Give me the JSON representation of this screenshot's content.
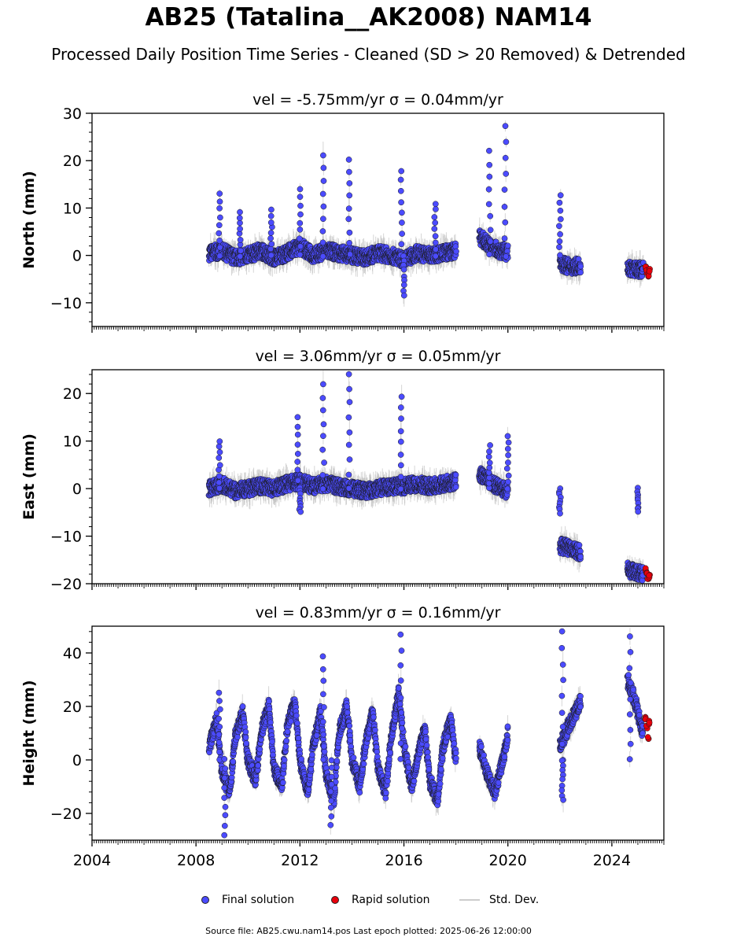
{
  "title": "AB25 (Tatalina__AK2008) NAM14",
  "subtitle": "Processed Daily Position Time Series - Cleaned (SD > 20 Removed) & Detrended",
  "legend": {
    "final": "Final solution",
    "rapid": "Rapid solution",
    "stddev": "Std. Dev."
  },
  "footer": "Source file: AB25.cwu.nam14.pos  Last epoch plotted: 2025-06-26 12:00:00",
  "colors": {
    "final": "#4b4bff",
    "rapid": "#e8000b",
    "stddev": "#bbbbbb",
    "edge": "#1a1a1a"
  },
  "chart_data": [
    {
      "type": "scatter",
      "title": "vel = -5.75mm/yr   σ = 0.04mm/yr",
      "ylabel": "North (mm)",
      "xlim": [
        2004,
        2026
      ],
      "ylim": [
        -15,
        30
      ],
      "yticks": [
        -10,
        0,
        10,
        20,
        30
      ],
      "xticks": [
        2004,
        2008,
        2012,
        2016,
        2020,
        2024
      ],
      "xtick_labels_shown": false,
      "final_segments": [
        {
          "x": [
            2008.5,
            2009.0,
            2009.5,
            2010.0,
            2010.5,
            2011.0,
            2011.5,
            2012.0,
            2012.5,
            2013.0,
            2013.5,
            2014.0,
            2014.5,
            2015.0,
            2015.5,
            2016.0,
            2016.5,
            2017.0,
            2017.5,
            2018.0
          ],
          "y": [
            0.5,
            1.0,
            -0.5,
            0.0,
            1.0,
            -0.5,
            0.5,
            2.0,
            0.0,
            1.0,
            0.5,
            0.0,
            -0.5,
            0.5,
            0.0,
            -1.0,
            0.5,
            0.0,
            0.5,
            1.0
          ]
        },
        {
          "x": [
            2018.9,
            2019.3,
            2019.7,
            2020.0
          ],
          "y": [
            4.0,
            2.0,
            1.0,
            0.5
          ]
        },
        {
          "x": [
            2022.0,
            2022.4,
            2022.8
          ],
          "y": [
            -1.5,
            -2.5,
            -2.0
          ]
        },
        {
          "x": [
            2024.6,
            2024.9,
            2025.2
          ],
          "y": [
            -2.5,
            -3.0,
            -3.0
          ]
        }
      ],
      "final_spikes": [
        {
          "x": 2008.9,
          "y": 13.0
        },
        {
          "x": 2009.7,
          "y": 9.0
        },
        {
          "x": 2010.9,
          "y": 9.5
        },
        {
          "x": 2012.0,
          "y": 14.0
        },
        {
          "x": 2012.9,
          "y": 21.0
        },
        {
          "x": 2013.9,
          "y": 20.0
        },
        {
          "x": 2015.9,
          "y": 18.0
        },
        {
          "x": 2016.0,
          "y": -8.5
        },
        {
          "x": 2017.2,
          "y": 11.0
        },
        {
          "x": 2019.3,
          "y": 22.0
        },
        {
          "x": 2019.9,
          "y": 27.5
        },
        {
          "x": 2022.0,
          "y": 12.5
        }
      ],
      "rapid": {
        "x": [
          2025.3,
          2025.35,
          2025.4,
          2025.45
        ],
        "y": [
          -2.5,
          -3.5,
          -4.0,
          -3.0
        ]
      }
    },
    {
      "type": "scatter",
      "title": "vel = 3.06mm/yr   σ = 0.05mm/yr",
      "ylabel": "East (mm)",
      "xlim": [
        2004,
        2026
      ],
      "ylim": [
        -20,
        25
      ],
      "yticks": [
        -20,
        -10,
        0,
        10,
        20
      ],
      "xticks": [
        2004,
        2008,
        2012,
        2016,
        2020,
        2024
      ],
      "xtick_labels_shown": false,
      "final_segments": [
        {
          "x": [
            2008.5,
            2009.0,
            2009.5,
            2010.0,
            2010.5,
            2011.0,
            2011.5,
            2012.0,
            2012.5,
            2013.0,
            2013.5,
            2014.0,
            2014.5,
            2015.0,
            2015.5,
            2016.0,
            2016.5,
            2017.0,
            2017.5,
            2018.0
          ],
          "y": [
            0.0,
            1.0,
            -0.5,
            0.0,
            0.5,
            0.0,
            1.0,
            1.5,
            0.5,
            1.0,
            0.5,
            0.0,
            -0.5,
            0.0,
            0.5,
            0.5,
            1.0,
            0.5,
            1.0,
            1.5
          ]
        },
        {
          "x": [
            2018.9,
            2019.3,
            2019.7,
            2020.0
          ],
          "y": [
            3.0,
            1.5,
            0.0,
            -0.5
          ]
        },
        {
          "x": [
            2022.0,
            2022.4,
            2022.8
          ],
          "y": [
            -12.0,
            -12.5,
            -13.5
          ]
        },
        {
          "x": [
            2024.6,
            2024.9,
            2025.2
          ],
          "y": [
            -17.0,
            -17.5,
            -18.0
          ]
        }
      ],
      "final_spikes": [
        {
          "x": 2008.9,
          "y": 10.0
        },
        {
          "x": 2011.9,
          "y": 15.0
        },
        {
          "x": 2012.9,
          "y": 22.0
        },
        {
          "x": 2013.9,
          "y": 24.0
        },
        {
          "x": 2015.9,
          "y": 19.5
        },
        {
          "x": 2019.3,
          "y": 9.0
        },
        {
          "x": 2020.0,
          "y": 11.0
        },
        {
          "x": 2022.0,
          "y": -5.0
        },
        {
          "x": 2025.0,
          "y": -5.0
        },
        {
          "x": 2012.0,
          "y": -5.0
        }
      ],
      "rapid": {
        "x": [
          2025.3,
          2025.35,
          2025.4,
          2025.45
        ],
        "y": [
          -17.0,
          -18.0,
          -19.0,
          -18.5
        ]
      }
    },
    {
      "type": "scatter",
      "title": "vel = 0.83mm/yr   σ = 0.16mm/yr",
      "ylabel": "Height (mm)",
      "xlim": [
        2004,
        2026
      ],
      "ylim": [
        -30,
        50
      ],
      "yticks": [
        -20,
        0,
        20,
        40
      ],
      "xticks": [
        2004,
        2008,
        2012,
        2016,
        2020,
        2024
      ],
      "xtick_labels_shown": true,
      "final_segments": [
        {
          "x": [
            2008.5,
            2008.8,
            2009.0,
            2009.3,
            2009.5,
            2009.8,
            2010.0,
            2010.3,
            2010.5,
            2010.8,
            2011.0,
            2011.3,
            2011.5,
            2011.8,
            2012.0,
            2012.3,
            2012.5,
            2012.8,
            2013.0,
            2013.3,
            2013.5,
            2013.8,
            2014.0,
            2014.3,
            2014.5,
            2014.8,
            2015.0,
            2015.3,
            2015.5,
            2015.8,
            2016.0,
            2016.3,
            2016.5,
            2016.8,
            2017.0,
            2017.3,
            2017.5,
            2017.8,
            2018.0
          ],
          "y": [
            5,
            15,
            -5,
            -12,
            8,
            18,
            0,
            -8,
            10,
            20,
            -3,
            -10,
            12,
            22,
            0,
            -12,
            5,
            18,
            -5,
            -15,
            10,
            20,
            0,
            -10,
            5,
            18,
            -3,
            -12,
            8,
            25,
            5,
            -10,
            0,
            12,
            -8,
            -15,
            5,
            15,
            0
          ]
        },
        {
          "x": [
            2018.9,
            2019.2,
            2019.5,
            2019.8,
            2020.0
          ],
          "y": [
            5,
            -5,
            -12,
            0,
            10
          ]
        },
        {
          "x": [
            2022.0,
            2022.3,
            2022.6,
            2022.8
          ],
          "y": [
            5,
            12,
            18,
            22
          ]
        },
        {
          "x": [
            2024.6,
            2024.8,
            2025.0,
            2025.2
          ],
          "y": [
            30,
            25,
            18,
            10
          ]
        }
      ],
      "final_spikes": [
        {
          "x": 2008.9,
          "y": 25.0
        },
        {
          "x": 2009.1,
          "y": -28.0
        },
        {
          "x": 2012.9,
          "y": 39.0
        },
        {
          "x": 2015.9,
          "y": 47.0
        },
        {
          "x": 2022.1,
          "y": 48.0
        },
        {
          "x": 2024.7,
          "y": 46.0
        },
        {
          "x": 2022.1,
          "y": -15.0
        },
        {
          "x": 2013.2,
          "y": -24.0
        }
      ],
      "rapid": {
        "x": [
          2025.3,
          2025.35,
          2025.4,
          2025.45
        ],
        "y": [
          16.0,
          12.0,
          8.0,
          14.0
        ]
      }
    }
  ]
}
